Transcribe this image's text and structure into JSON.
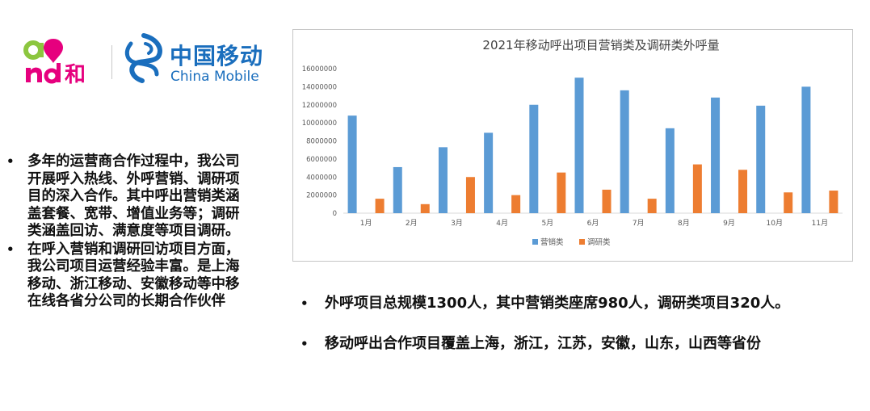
{
  "logos": {
    "and_mark": "and和",
    "cn_name": "中国移动",
    "en_name": "China Mobile"
  },
  "left_bullets": [
    "多年的运营商合作过程中，我公司开展呼入热线、外呼营销、调研项目的深入合作。其中呼出营销类涵盖套餐、宽带、增值业务等；调研类涵盖回访、满意度等项目调研。",
    "在呼入营销和调研回访项目方面，我公司项目运营经验丰富。是上海移动、浙江移动、安徽移动等中移在线各省分公司的长期合作伙伴"
  ],
  "right_bullets": [
    "外呼项目总规模1300人，其中营销类座席980人，调研类项目320人。",
    "移动呼出合作项目覆盖上海，浙江，江苏，安徽，山东，山西等省份"
  ],
  "bullet_symbol": "•",
  "colors": {
    "series_marketing": "#5b9bd5",
    "series_research": "#ed7d31",
    "brand_blue": "#1a6ebd",
    "brand_pink": "#e6007e",
    "brand_green": "#8cc63f"
  },
  "chart_data": {
    "type": "bar",
    "title": "2021年移动呼出项目营销类及调研类外呼量",
    "xlabel": "",
    "ylabel": "",
    "categories": [
      "1月",
      "2月",
      "3月",
      "4月",
      "5月",
      "6月",
      "7月",
      "8月",
      "9月",
      "10月",
      "11月"
    ],
    "series": [
      {
        "name": "营销类",
        "values": [
          10800000,
          5100000,
          7300000,
          8900000,
          12000000,
          15000000,
          13600000,
          9400000,
          12800000,
          11900000,
          14000000
        ]
      },
      {
        "name": "调研类",
        "values": [
          1600000,
          1000000,
          4000000,
          2000000,
          4500000,
          2600000,
          1600000,
          5400000,
          4800000,
          2300000,
          2500000
        ]
      }
    ],
    "ylim": [
      0,
      16000000
    ],
    "yticks": [
      0,
      2000000,
      4000000,
      6000000,
      8000000,
      10000000,
      12000000,
      14000000,
      16000000
    ],
    "ytick_labels": [
      "0",
      "2000000",
      "4000000",
      "6000000",
      "8000000",
      "10000000",
      "12000000",
      "14000000",
      "16000000"
    ],
    "grid": false,
    "legend": "bottom"
  }
}
